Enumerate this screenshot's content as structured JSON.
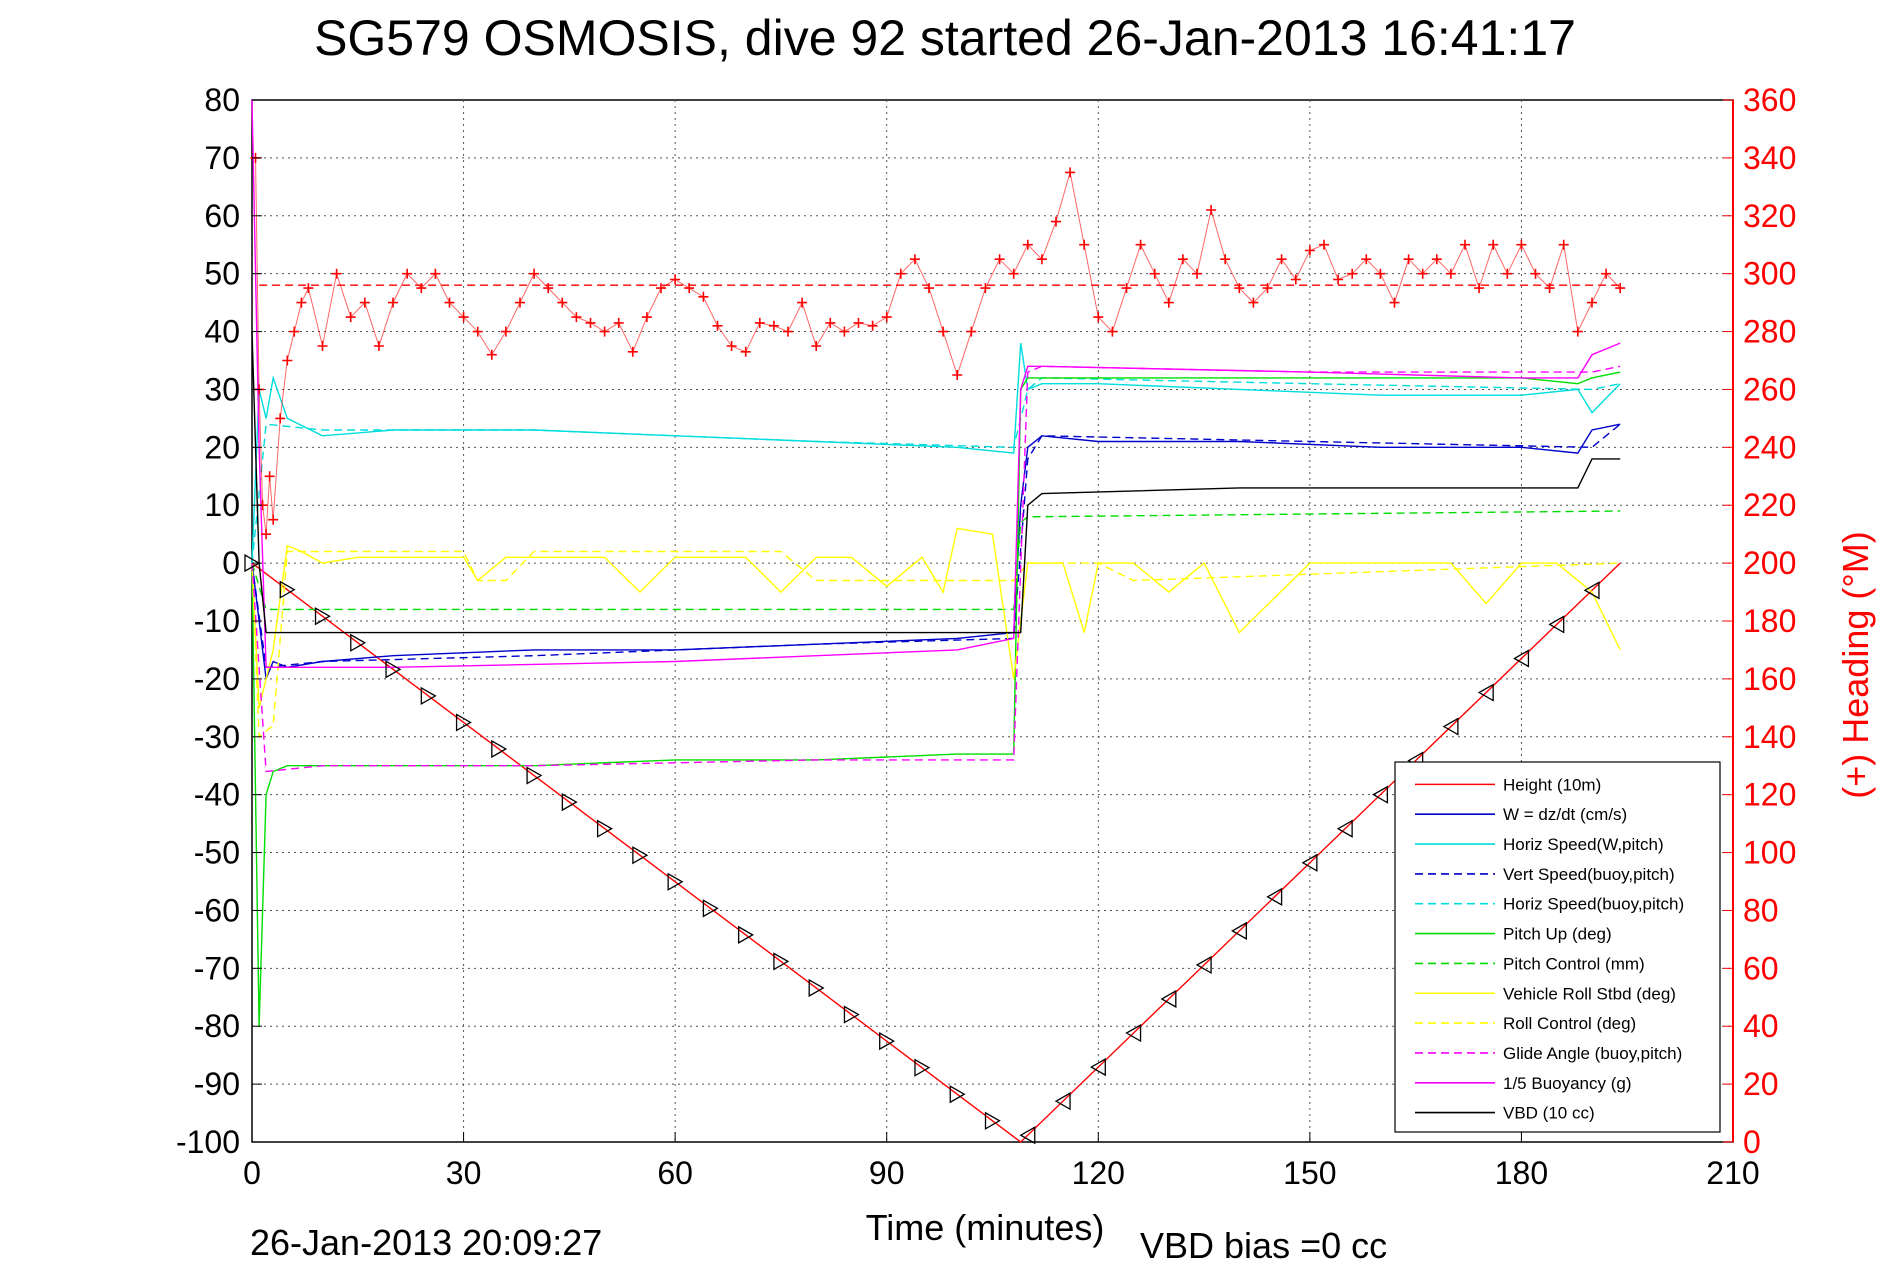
{
  "chart_data": {
    "type": "line",
    "title": "SG579 OSMOSIS, dive 92 started 26-Jan-2013 16:41:17",
    "xlabel": "Time (minutes)",
    "ylabel": "",
    "y2label": "(+) Heading (°M)",
    "footer_left": "26-Jan-2013 20:09:27",
    "footer_right": "VBD bias =0 cc",
    "xlim": [
      0,
      210
    ],
    "ylim": [
      -100,
      80
    ],
    "y2lim": [
      0,
      360
    ],
    "grid": true,
    "legend_position": "bottom-right",
    "xticks": [
      "0",
      "30",
      "60",
      "90",
      "120",
      "150",
      "180",
      "210"
    ],
    "yticks": [
      "80",
      "70",
      "60",
      "50",
      "40",
      "30",
      "20",
      "10",
      "0",
      "-10",
      "-20",
      "-30",
      "-40",
      "-50",
      "-60",
      "-70",
      "-80",
      "-90",
      "-100"
    ],
    "y2ticks": [
      "360",
      "340",
      "320",
      "300",
      "280",
      "260",
      "240",
      "220",
      "200",
      "180",
      "160",
      "140",
      "120",
      "100",
      "80",
      "60",
      "40",
      "20",
      "0"
    ],
    "series": [
      {
        "name": "Height (10m)",
        "color": "#ff0000",
        "dash": "solid",
        "axis": "left",
        "x": [
          0,
          109,
          194
        ],
        "y": [
          0,
          -100,
          0
        ]
      },
      {
        "name": "W = dz/dt (cm/s)",
        "color": "#0000cc",
        "dash": "solid",
        "axis": "left",
        "x": [
          0,
          1,
          2,
          3,
          5,
          10,
          20,
          40,
          60,
          80,
          100,
          108,
          109,
          110,
          112,
          120,
          140,
          160,
          180,
          188,
          190,
          194
        ],
        "y": [
          0,
          -10,
          -20,
          -17,
          -18,
          -17,
          -16,
          -15,
          -15,
          -14,
          -13,
          -12,
          10,
          20,
          22,
          21,
          21,
          20,
          20,
          19,
          23,
          24
        ]
      },
      {
        "name": "Horiz Speed(W,pitch)",
        "color": "#00dddd",
        "dash": "solid",
        "axis": "left",
        "x": [
          0,
          1,
          2,
          3,
          5,
          10,
          20,
          40,
          60,
          80,
          100,
          108,
          109,
          110,
          112,
          120,
          140,
          160,
          180,
          188,
          190,
          194
        ],
        "y": [
          0,
          30,
          25,
          32,
          25,
          22,
          23,
          23,
          22,
          21,
          20,
          19,
          38,
          30,
          31,
          31,
          30,
          29,
          29,
          30,
          26,
          31
        ]
      },
      {
        "name": "Vert Speed(buoy,pitch)",
        "color": "#0000cc",
        "dash": "dashed",
        "axis": "left",
        "x": [
          0,
          2,
          10,
          40,
          80,
          108,
          110,
          112,
          150,
          190,
          194
        ],
        "y": [
          0,
          -18,
          -17,
          -16,
          -14,
          -13,
          18,
          22,
          21,
          20,
          24
        ]
      },
      {
        "name": "Horiz Speed(buoy,pitch)",
        "color": "#00dddd",
        "dash": "dashed",
        "axis": "left",
        "x": [
          0,
          2,
          10,
          40,
          80,
          108,
          110,
          112,
          150,
          190,
          194
        ],
        "y": [
          0,
          24,
          23,
          23,
          21,
          20,
          30,
          32,
          31,
          30,
          31
        ]
      },
      {
        "name": "Pitch Up (deg)",
        "color": "#00dd00",
        "dash": "solid",
        "axis": "left",
        "x": [
          0,
          1,
          2,
          3,
          5,
          10,
          20,
          40,
          60,
          80,
          100,
          108,
          109,
          110,
          112,
          120,
          140,
          160,
          180,
          188,
          190,
          194
        ],
        "y": [
          0,
          -80,
          -40,
          -36,
          -35,
          -35,
          -35,
          -35,
          -34,
          -34,
          -33,
          -33,
          30,
          32,
          32,
          32,
          32,
          32,
          32,
          31,
          32,
          33
        ]
      },
      {
        "name": "Pitch Control (mm)",
        "color": "#00dd00",
        "dash": "dashed",
        "axis": "left",
        "x": [
          0,
          2,
          108,
          109,
          110,
          194
        ],
        "y": [
          0,
          -8,
          -8,
          7,
          8,
          9
        ]
      },
      {
        "name": "Vehicle Roll Stbd (deg)",
        "color": "#ffff00",
        "dash": "solid",
        "axis": "left",
        "x": [
          0,
          1,
          2,
          3,
          5,
          7,
          10,
          15,
          20,
          30,
          32,
          36,
          40,
          50,
          55,
          60,
          65,
          70,
          75,
          80,
          85,
          90,
          95,
          98,
          100,
          105,
          108,
          110,
          115,
          118,
          120,
          125,
          130,
          135,
          140,
          150,
          160,
          170,
          175,
          180,
          185,
          190,
          194
        ],
        "y": [
          0,
          -25,
          -20,
          -15,
          3,
          2,
          0,
          1,
          1,
          1,
          -3,
          1,
          1,
          1,
          -5,
          1,
          1,
          1,
          -5,
          1,
          1,
          -4,
          1,
          -5,
          6,
          5,
          -20,
          0,
          0,
          -12,
          0,
          0,
          -5,
          0,
          -12,
          0,
          0,
          0,
          -7,
          0,
          0,
          -5,
          -15
        ]
      },
      {
        "name": "Roll Control (deg)",
        "color": "#ffff00",
        "dash": "dashed",
        "axis": "left",
        "x": [
          0,
          1,
          3,
          5,
          30,
          32,
          36,
          40,
          75,
          80,
          108,
          110,
          120,
          125,
          194
        ],
        "y": [
          0,
          -30,
          -28,
          2,
          2,
          -3,
          -3,
          2,
          2,
          -3,
          -3,
          0,
          0,
          -3,
          0
        ]
      },
      {
        "name": "Glide Angle (buoy,pitch)",
        "color": "#ff00ff",
        "dash": "dashed",
        "axis": "left",
        "x": [
          0,
          2,
          10,
          40,
          80,
          108,
          110,
          112,
          150,
          190,
          194
        ],
        "y": [
          0,
          -36,
          -35,
          -35,
          -34,
          -34,
          33,
          34,
          33,
          33,
          34
        ]
      },
      {
        "name": "1/5 Buoyancy (g)",
        "color": "#ff00ff",
        "dash": "solid",
        "axis": "left",
        "x": [
          0,
          1,
          2,
          5,
          20,
          60,
          100,
          108,
          109,
          110,
          112,
          150,
          180,
          188,
          190,
          194
        ],
        "y": [
          80,
          20,
          -18,
          -18,
          -18,
          -17,
          -15,
          -13,
          30,
          34,
          34,
          33,
          32,
          32,
          36,
          38
        ]
      },
      {
        "name": "VBD (10 cc)",
        "color": "#000000",
        "dash": "solid",
        "axis": "left",
        "x": [
          0,
          1,
          2,
          5,
          108,
          109,
          110,
          112,
          140,
          188,
          190,
          194
        ],
        "y": [
          40,
          0,
          -12,
          -12,
          -12,
          -12,
          10,
          12,
          13,
          13,
          18,
          18
        ]
      },
      {
        "name": "Heading target",
        "color": "#ff0000",
        "dash": "dashed",
        "axis": "right",
        "x": [
          1,
          194
        ],
        "y": [
          296,
          296
        ]
      },
      {
        "name": "Heading",
        "color": "#ff0000",
        "dash": "plus-markers",
        "axis": "right",
        "x": [
          0.5,
          1,
          1.5,
          2,
          2.5,
          3,
          4,
          5,
          6,
          7,
          8,
          10,
          12,
          14,
          16,
          18,
          20,
          22,
          24,
          26,
          28,
          30,
          32,
          34,
          36,
          38,
          40,
          42,
          44,
          46,
          48,
          50,
          52,
          54,
          56,
          58,
          60,
          62,
          64,
          66,
          68,
          70,
          72,
          74,
          76,
          78,
          80,
          82,
          84,
          86,
          88,
          90,
          92,
          94,
          96,
          98,
          100,
          102,
          104,
          106,
          108,
          110,
          112,
          114,
          116,
          118,
          120,
          122,
          124,
          126,
          128,
          130,
          132,
          134,
          136,
          138,
          140,
          142,
          144,
          146,
          148,
          150,
          152,
          154,
          156,
          158,
          160,
          162,
          164,
          166,
          168,
          170,
          172,
          174,
          176,
          178,
          180,
          182,
          184,
          186,
          188,
          190,
          192,
          194
        ],
        "y": [
          340,
          260,
          220,
          210,
          230,
          215,
          250,
          270,
          280,
          290,
          295,
          275,
          300,
          285,
          290,
          275,
          290,
          300,
          295,
          300,
          290,
          285,
          280,
          272,
          280,
          290,
          300,
          295,
          290,
          285,
          283,
          280,
          283,
          273,
          285,
          295,
          298,
          295,
          292,
          282,
          275,
          273,
          283,
          282,
          280,
          290,
          275,
          283,
          280,
          283,
          282,
          285,
          300,
          305,
          295,
          280,
          265,
          280,
          295,
          305,
          300,
          310,
          305,
          318,
          335,
          310,
          285,
          280,
          295,
          310,
          300,
          290,
          305,
          300,
          322,
          305,
          295,
          290,
          295,
          305,
          298,
          308,
          310,
          298,
          300,
          305,
          300,
          290,
          305,
          300,
          305,
          300,
          310,
          295,
          310,
          300,
          310,
          300,
          295,
          310,
          280,
          290,
          300,
          295
        ]
      }
    ]
  }
}
